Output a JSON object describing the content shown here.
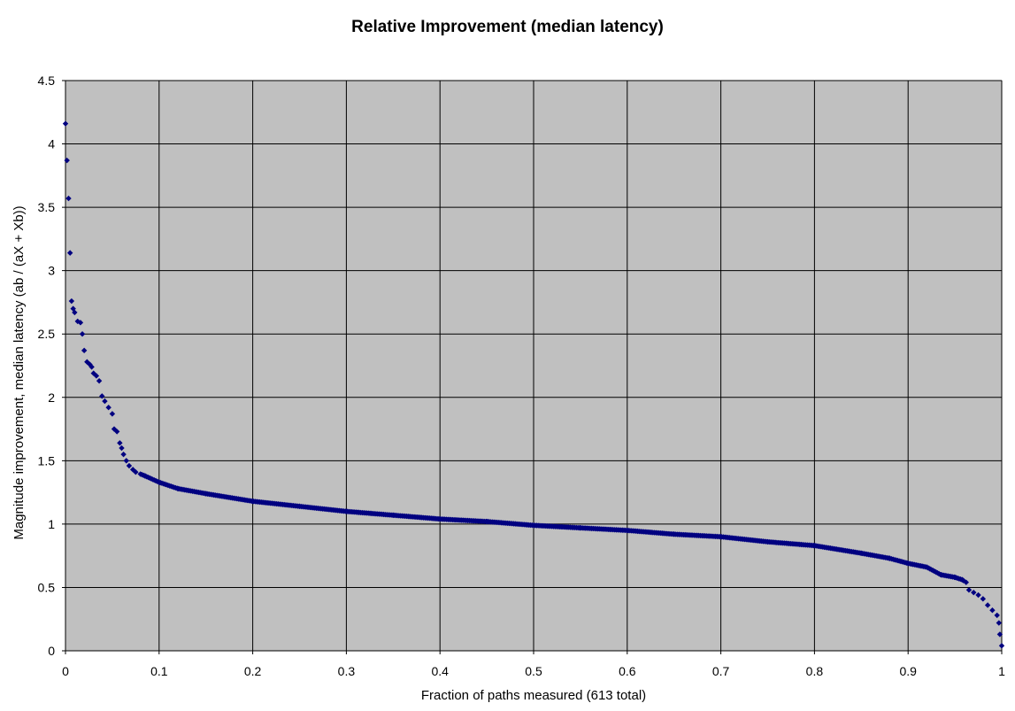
{
  "chart_data": {
    "type": "scatter",
    "title": "Relative Improvement (median latency)",
    "xlabel": "Fraction of paths measured (613 total)",
    "ylabel": "Magnitude improvement, median latency (ab / (aX + Xb))",
    "xlim": [
      0,
      1
    ],
    "ylim": [
      0,
      4.5
    ],
    "x_ticks": [
      "0",
      "0.1",
      "0.2",
      "0.3",
      "0.4",
      "0.5",
      "0.6",
      "0.7",
      "0.8",
      "0.9",
      "1"
    ],
    "y_ticks": [
      "0",
      "0.5",
      "1",
      "1.5",
      "2",
      "2.5",
      "3",
      "3.5",
      "4",
      "4.5"
    ],
    "grid": true,
    "plot_background": "#C0C0C0",
    "marker_color": "#000080",
    "marker": "diamond",
    "point_count": 613,
    "curve_points": [
      [
        0.0,
        4.16
      ],
      [
        0.0016,
        3.87
      ],
      [
        0.0033,
        3.57
      ],
      [
        0.0049,
        3.14
      ],
      [
        0.0065,
        2.76
      ],
      [
        0.0082,
        2.7
      ],
      [
        0.0098,
        2.67
      ],
      [
        0.013,
        2.6
      ],
      [
        0.016,
        2.59
      ],
      [
        0.018,
        2.5
      ],
      [
        0.02,
        2.37
      ],
      [
        0.023,
        2.28
      ],
      [
        0.026,
        2.26
      ],
      [
        0.028,
        2.24
      ],
      [
        0.03,
        2.19
      ],
      [
        0.033,
        2.17
      ],
      [
        0.036,
        2.13
      ],
      [
        0.039,
        2.01
      ],
      [
        0.042,
        1.97
      ],
      [
        0.046,
        1.92
      ],
      [
        0.05,
        1.87
      ],
      [
        0.052,
        1.75
      ],
      [
        0.055,
        1.73
      ],
      [
        0.058,
        1.64
      ],
      [
        0.06,
        1.6
      ],
      [
        0.062,
        1.55
      ],
      [
        0.065,
        1.5
      ],
      [
        0.068,
        1.46
      ],
      [
        0.072,
        1.43
      ],
      [
        0.075,
        1.41
      ],
      [
        0.085,
        1.38
      ],
      [
        0.1,
        1.33
      ],
      [
        0.12,
        1.28
      ],
      [
        0.15,
        1.24
      ],
      [
        0.2,
        1.18
      ],
      [
        0.25,
        1.14
      ],
      [
        0.3,
        1.1
      ],
      [
        0.35,
        1.07
      ],
      [
        0.4,
        1.04
      ],
      [
        0.45,
        1.02
      ],
      [
        0.5,
        0.99
      ],
      [
        0.55,
        0.97
      ],
      [
        0.6,
        0.95
      ],
      [
        0.65,
        0.92
      ],
      [
        0.7,
        0.9
      ],
      [
        0.75,
        0.86
      ],
      [
        0.8,
        0.83
      ],
      [
        0.85,
        0.77
      ],
      [
        0.88,
        0.73
      ],
      [
        0.9,
        0.69
      ],
      [
        0.92,
        0.66
      ],
      [
        0.935,
        0.6
      ],
      [
        0.95,
        0.58
      ],
      [
        0.958,
        0.56
      ],
      [
        0.962,
        0.54
      ],
      [
        0.965,
        0.48
      ],
      [
        0.97,
        0.46
      ],
      [
        0.975,
        0.44
      ],
      [
        0.98,
        0.41
      ],
      [
        0.985,
        0.36
      ],
      [
        0.99,
        0.32
      ],
      [
        0.995,
        0.28
      ],
      [
        0.997,
        0.22
      ],
      [
        0.998,
        0.13
      ],
      [
        1.0,
        0.04
      ]
    ]
  }
}
